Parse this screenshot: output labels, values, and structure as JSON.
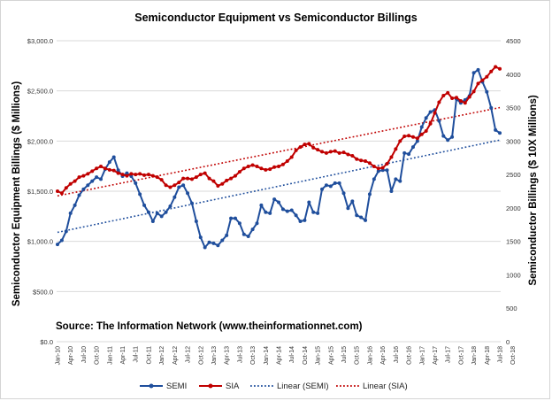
{
  "chart_data": {
    "type": "line",
    "title": "Semiconductor Equipment vs Semiconductor Billings",
    "annotation": "Source: The Information Network (www.theinformationnet.com)",
    "y_left": {
      "label": "Semiconductor Equipment Billings ($ Millions)",
      "range": [
        0,
        3000
      ],
      "ticks": [
        "$0.0",
        "$500.0",
        "$1,000.0",
        "$1,500.0",
        "$2,000.0",
        "$2,500.0",
        "$3,000.0"
      ]
    },
    "y_right": {
      "label": "Semiconductor Billings ($ 10X Millions)",
      "range": [
        0,
        4500
      ],
      "ticks": [
        "0",
        "500",
        "1000",
        "1500",
        "2000",
        "2500",
        "3000",
        "3500",
        "4000",
        "4500"
      ]
    },
    "x_tick_labels": [
      "Jan-10",
      "Apr-10",
      "Jul-10",
      "Oct-10",
      "Jan-11",
      "Apr-11",
      "Jul-11",
      "Oct-11",
      "Jan-12",
      "Apr-12",
      "Jul-12",
      "Oct-12",
      "Jan-13",
      "Apr-13",
      "Jul-13",
      "Oct-13",
      "Jan-14",
      "Apr-14",
      "Jul-14",
      "Oct-14",
      "Jan-15",
      "Apr-15",
      "Jul-15",
      "Oct-15",
      "Jan-16",
      "Apr-16",
      "Jul-16",
      "Oct-16",
      "Jan-17",
      "Apr-17",
      "Jul-17",
      "Oct-17",
      "Jan-18",
      "Apr-18",
      "Jul-18",
      "Oct-18"
    ],
    "grid": "horizontal",
    "legend_position": "bottom",
    "legend": [
      "SEMI",
      "SIA",
      "Linear  (SEMI)",
      "Linear  (SIA)"
    ],
    "colors": {
      "semi": "#1f4e9c",
      "sia": "#c00000",
      "grid": "#d9d9d9"
    },
    "series": [
      {
        "name": "SEMI",
        "axis": "left",
        "values": [
          970,
          1010,
          1100,
          1280,
          1360,
          1460,
          1520,
          1560,
          1600,
          1640,
          1620,
          1720,
          1790,
          1840,
          1710,
          1650,
          1680,
          1650,
          1580,
          1470,
          1360,
          1290,
          1200,
          1280,
          1250,
          1290,
          1350,
          1440,
          1540,
          1560,
          1480,
          1380,
          1200,
          1040,
          940,
          990,
          980,
          960,
          1010,
          1060,
          1230,
          1230,
          1180,
          1070,
          1050,
          1120,
          1180,
          1360,
          1290,
          1280,
          1420,
          1390,
          1320,
          1300,
          1310,
          1260,
          1200,
          1210,
          1390,
          1290,
          1280,
          1520,
          1560,
          1550,
          1580,
          1580,
          1480,
          1330,
          1400,
          1260,
          1240,
          1210,
          1470,
          1620,
          1700,
          1710,
          1710,
          1500,
          1620,
          1600,
          1880,
          1870,
          1940,
          2000,
          2140,
          2230,
          2290,
          2310,
          2200,
          2050,
          2010,
          2040,
          2420,
          2380,
          2410,
          2450,
          2680,
          2710,
          2590,
          2490,
          2330,
          2110,
          2080
        ]
      },
      {
        "name": "SIA",
        "axis": "right",
        "values": [
          2250,
          2220,
          2300,
          2360,
          2400,
          2460,
          2480,
          2510,
          2550,
          2590,
          2620,
          2590,
          2570,
          2560,
          2520,
          2500,
          2480,
          2510,
          2500,
          2510,
          2490,
          2500,
          2480,
          2460,
          2420,
          2340,
          2310,
          2340,
          2380,
          2440,
          2440,
          2430,
          2460,
          2500,
          2520,
          2440,
          2400,
          2330,
          2360,
          2410,
          2440,
          2480,
          2540,
          2590,
          2620,
          2640,
          2620,
          2590,
          2570,
          2580,
          2610,
          2620,
          2650,
          2700,
          2760,
          2860,
          2910,
          2950,
          2960,
          2900,
          2870,
          2840,
          2820,
          2840,
          2850,
          2820,
          2830,
          2800,
          2780,
          2730,
          2710,
          2700,
          2670,
          2620,
          2590,
          2600,
          2660,
          2760,
          2880,
          3000,
          3070,
          3080,
          3060,
          3040,
          3100,
          3150,
          3260,
          3420,
          3580,
          3680,
          3720,
          3640,
          3650,
          3600,
          3570,
          3660,
          3740,
          3860,
          3910,
          3960,
          4040,
          4110,
          4080
        ]
      }
    ],
    "trendlines": [
      {
        "name": "Linear  (SEMI)",
        "of": "SEMI",
        "start": 1090,
        "end": 2010
      },
      {
        "name": "Linear  (SIA)",
        "of": "SIA",
        "start": 2180,
        "end": 3500
      }
    ]
  }
}
